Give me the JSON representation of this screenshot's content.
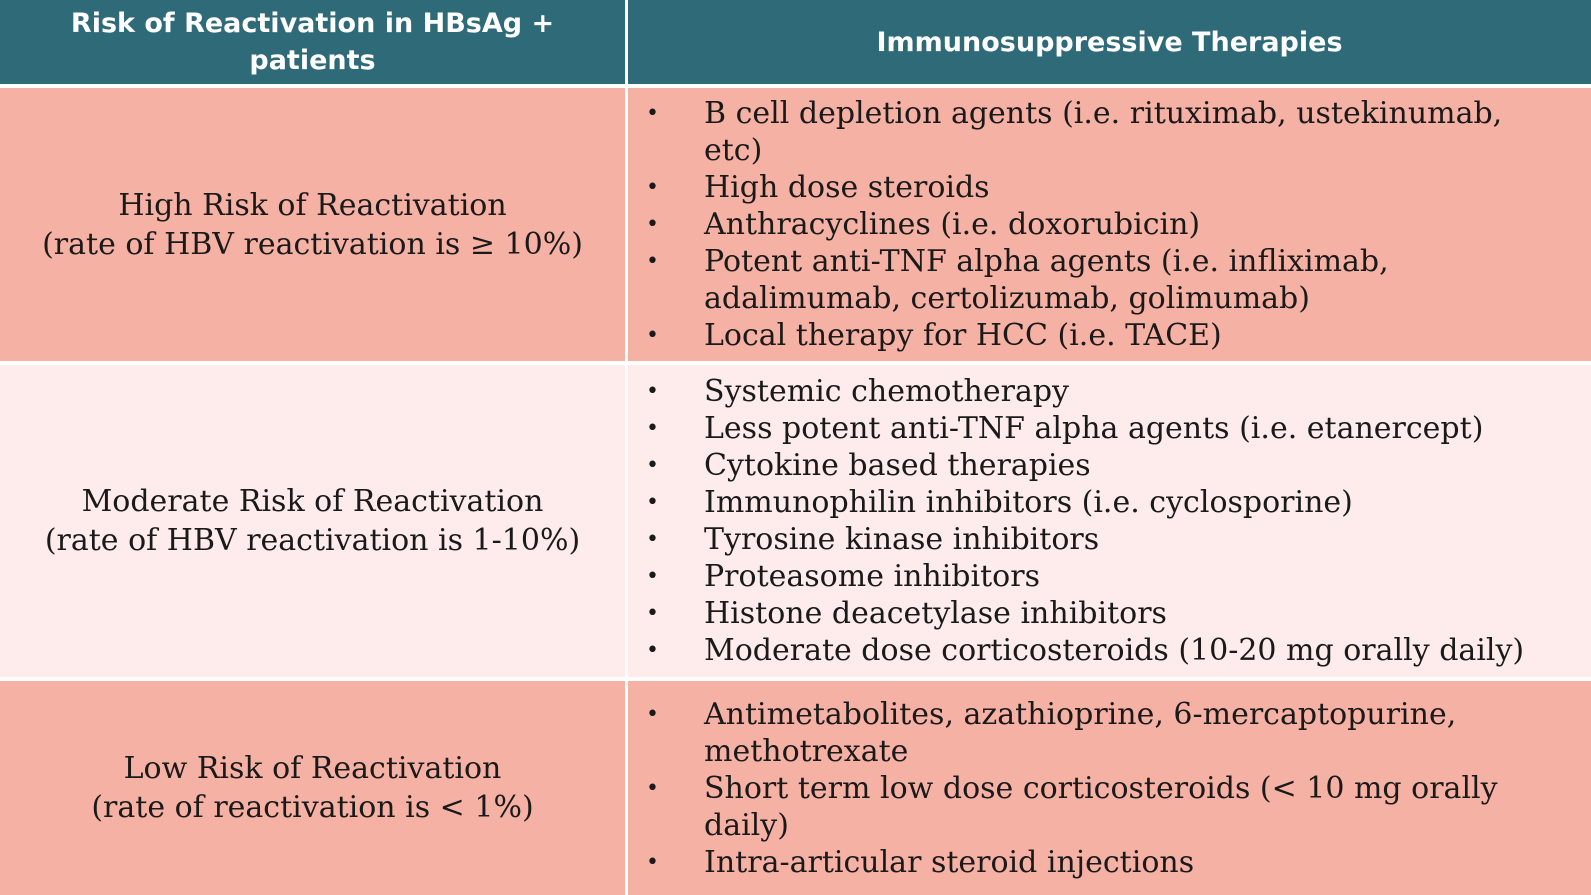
{
  "header": {
    "risk_line1": "Risk of Reactivation in HBsAg +",
    "risk_line2": "patients",
    "therapies": "Immunosuppressive  Therapies"
  },
  "rows": [
    {
      "risk_title": "High Risk of Reactivation",
      "risk_rate": "(rate of HBV reactivation is ≥ 10%)",
      "items": [
        "B cell depletion agents (i.e. rituximab, ustekinumab, etc)",
        "High dose steroids",
        "Anthracyclines (i.e. doxorubicin)",
        "Potent anti-TNF alpha agents (i.e. infliximab, adalimumab, certolizumab, golimumab)",
        "Local therapy for HCC (i.e. TACE)"
      ]
    },
    {
      "risk_title": "Moderate Risk of Reactivation",
      "risk_rate": "(rate of HBV reactivation is 1-10%)",
      "items": [
        "Systemic chemotherapy",
        "Less potent anti-TNF alpha agents (i.e. etanercept)",
        "Cytokine based therapies",
        "Immunophilin inhibitors (i.e. cyclosporine)",
        "Tyrosine kinase inhibitors",
        "Proteasome inhibitors",
        "Histone deacetylase inhibitors",
        "Moderate dose corticosteroids (10-20 mg orally daily)"
      ]
    },
    {
      "risk_title": "Low Risk of Reactivation",
      "risk_rate": "(rate of reactivation is < 1%)",
      "items": [
        "Antimetabolites, azathioprine, 6-mercaptopurine, methotrexate",
        "Short term low dose corticosteroids (< 10 mg orally daily)",
        "Intra-articular steroid injections"
      ]
    }
  ],
  "colors": {
    "header_bg": "#2f6a78",
    "row_dark_bg": "#f6b1a5",
    "row_light_bg": "#fdeceb"
  }
}
